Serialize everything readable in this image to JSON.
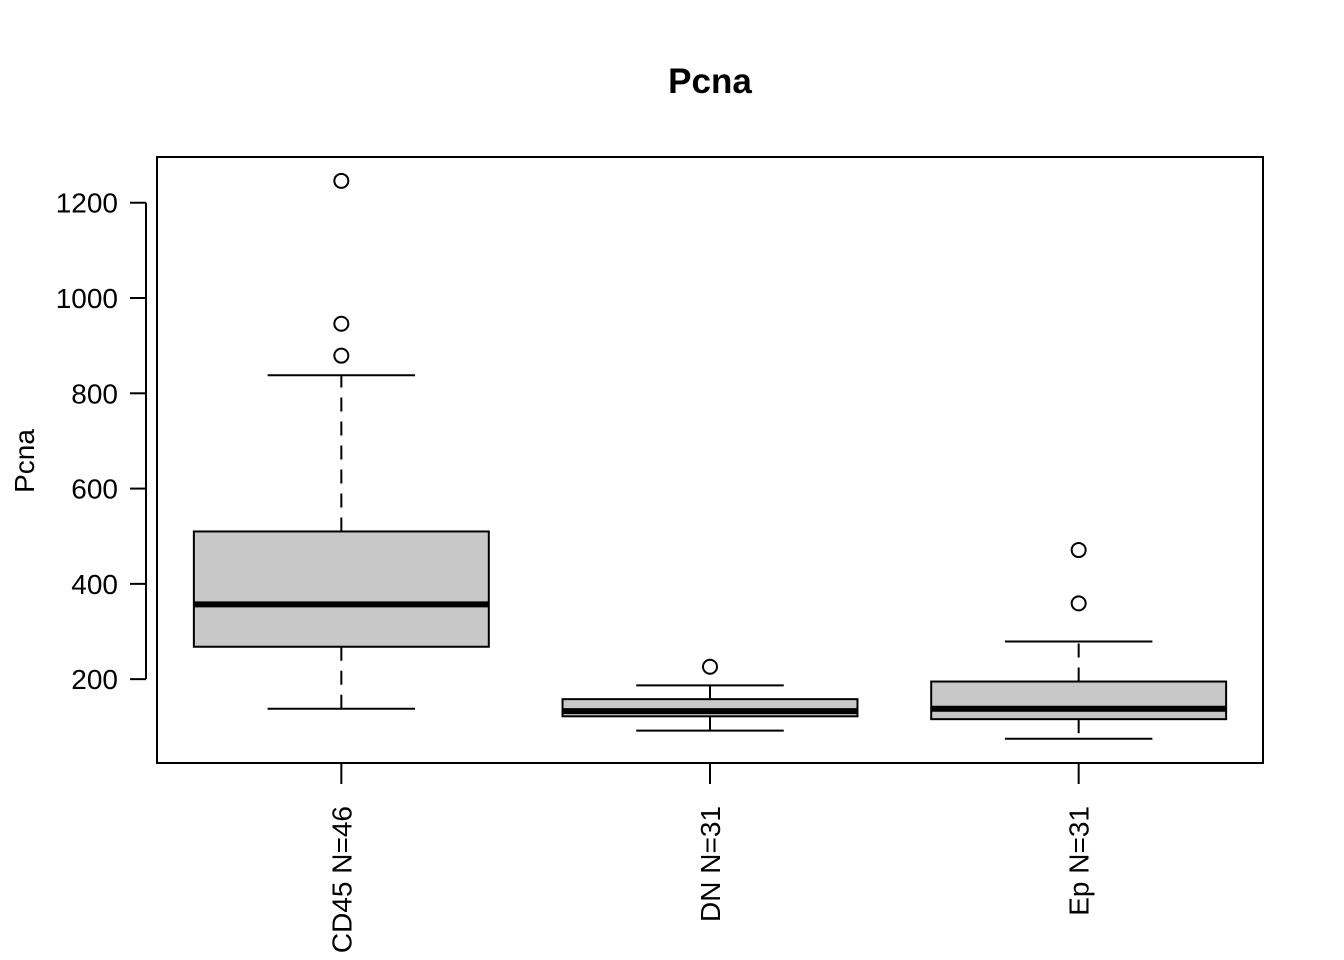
{
  "chart_data": {
    "type": "boxplot",
    "title": "Pcna",
    "xlabel": "",
    "ylabel": "Pcna",
    "ylim": [
      24,
      1296
    ],
    "yticks": [
      200,
      400,
      600,
      800,
      1000,
      1200
    ],
    "grid": false,
    "legend": "none",
    "colors": {
      "box_fill": "#c8c8c8",
      "stroke": "#000000",
      "background": "#ffffff"
    },
    "categories": [
      "CD45 N=46",
      "DN N=31",
      "Ep N=31"
    ],
    "boxes": [
      {
        "label": "CD45 N=46",
        "whisker_low": 138,
        "q1": 268,
        "median": 357,
        "q3": 510,
        "whisker_high": 838,
        "outliers": [
          879,
          946,
          1246
        ]
      },
      {
        "label": "DN N=31",
        "whisker_low": 92,
        "q1": 122,
        "median": 133,
        "q3": 158,
        "whisker_high": 187,
        "outliers": [
          226
        ]
      },
      {
        "label": "Ep N=31",
        "whisker_low": 75,
        "q1": 116,
        "median": 138,
        "q3": 195,
        "whisker_high": 279,
        "outliers": [
          359,
          471
        ]
      }
    ]
  }
}
